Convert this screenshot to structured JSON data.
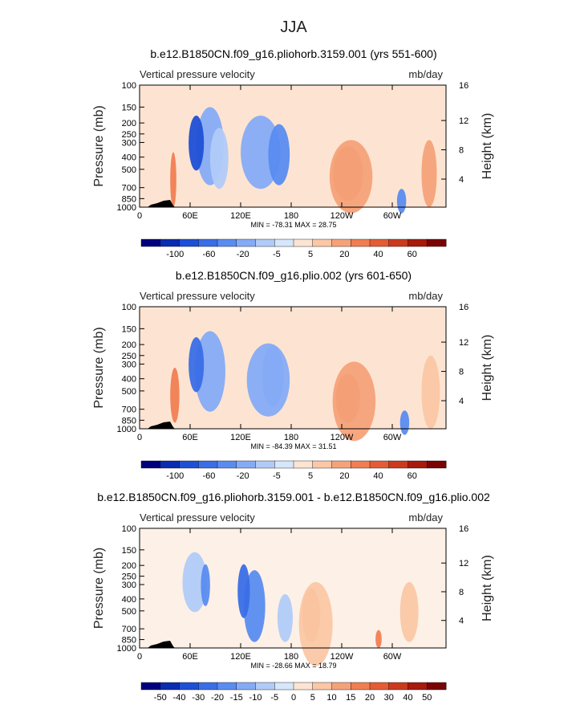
{
  "page": {
    "title": "JJA"
  },
  "chart_data": [
    {
      "type": "heatmap",
      "title": "b.e12.B1850CN.f09_g16.pliohorb.3159.001 (yrs 551-600)",
      "left_label": "Vertical pressure velocity",
      "right_label": "mb/day",
      "ylabel": "Pressure (mb)",
      "ylabel_right": "Height (km)",
      "yticks": [
        "100",
        "150",
        "200",
        "250",
        "300",
        "400",
        "500",
        "700",
        "850",
        "1000"
      ],
      "yticks_right": [
        "16",
        "12",
        "8",
        "4"
      ],
      "xticks": [
        "0",
        "60E",
        "120E",
        "180",
        "120W",
        "60W"
      ],
      "stats": "MIN = -78.31   MAX =  28.75",
      "colorbar_labels": [
        "-100",
        "-60",
        "-20",
        "-5",
        "5",
        "20",
        "40",
        "60"
      ],
      "colorbar_colors": [
        "#00007f",
        "#0a2cb0",
        "#1f4fd6",
        "#3a6ee6",
        "#5a8cf0",
        "#86abf5",
        "#b1cbf8",
        "#d6e6fb",
        "#fde4d2",
        "#fbc7a5",
        "#f6a279",
        "#f17e52",
        "#e55c34",
        "#cc3a1e",
        "#a71a0c",
        "#7a0403"
      ],
      "zero_color": "#fde4d2",
      "features": [
        {
          "x": 0.185,
          "w": 0.09,
          "y": 0.18,
          "h": 0.64,
          "v": -30
        },
        {
          "x": 0.16,
          "w": 0.05,
          "y": 0.25,
          "h": 0.45,
          "v": -60
        },
        {
          "x": 0.33,
          "w": 0.13,
          "y": 0.25,
          "h": 0.6,
          "v": -20
        },
        {
          "x": 0.42,
          "w": 0.07,
          "y": 0.32,
          "h": 0.5,
          "v": -35
        },
        {
          "x": 0.23,
          "w": 0.06,
          "y": 0.35,
          "h": 0.5,
          "v": -15
        },
        {
          "x": 0.63,
          "w": 0.1,
          "y": 0.5,
          "h": 0.45,
          "v": 30
        },
        {
          "x": 0.62,
          "w": 0.14,
          "y": 0.45,
          "h": 0.6,
          "v": 15
        },
        {
          "x": 0.84,
          "w": 0.03,
          "y": 0.85,
          "h": 0.2,
          "v": -40
        },
        {
          "x": 0.92,
          "w": 0.05,
          "y": 0.45,
          "h": 0.55,
          "v": 12
        },
        {
          "x": 0.1,
          "w": 0.02,
          "y": 0.55,
          "h": 0.45,
          "v": 25
        }
      ],
      "value_range": [
        -78.31,
        28.75
      ]
    },
    {
      "type": "heatmap",
      "title": "b.e12.B1850CN.f09_g16.plio.002 (yrs 601-650)",
      "left_label": "Vertical pressure velocity",
      "right_label": "mb/day",
      "ylabel": "Pressure (mb)",
      "ylabel_right": "Height (km)",
      "yticks": [
        "100",
        "150",
        "200",
        "250",
        "300",
        "400",
        "500",
        "700",
        "850",
        "1000"
      ],
      "yticks_right": [
        "16",
        "12",
        "8",
        "4"
      ],
      "xticks": [
        "0",
        "60E",
        "120E",
        "180",
        "120W",
        "60W"
      ],
      "stats": "MIN = -84.39   MAX =  31.51",
      "colorbar_labels": [
        "-100",
        "-60",
        "-20",
        "-5",
        "5",
        "20",
        "40",
        "60"
      ],
      "colorbar_colors": [
        "#00007f",
        "#0a2cb0",
        "#1f4fd6",
        "#3a6ee6",
        "#5a8cf0",
        "#86abf5",
        "#b1cbf8",
        "#d6e6fb",
        "#fde4d2",
        "#fbc7a5",
        "#f6a279",
        "#f17e52",
        "#e55c34",
        "#cc3a1e",
        "#a71a0c",
        "#7a0403"
      ],
      "zero_color": "#fde4d2",
      "features": [
        {
          "x": 0.18,
          "w": 0.1,
          "y": 0.2,
          "h": 0.66,
          "v": -30
        },
        {
          "x": 0.16,
          "w": 0.05,
          "y": 0.25,
          "h": 0.45,
          "v": -60
        },
        {
          "x": 0.35,
          "w": 0.14,
          "y": 0.3,
          "h": 0.6,
          "v": -22
        },
        {
          "x": 0.4,
          "w": 0.07,
          "y": 0.32,
          "h": 0.5,
          "v": -35
        },
        {
          "x": 0.64,
          "w": 0.08,
          "y": 0.55,
          "h": 0.4,
          "v": 30
        },
        {
          "x": 0.63,
          "w": 0.14,
          "y": 0.45,
          "h": 0.65,
          "v": 15
        },
        {
          "x": 0.85,
          "w": 0.03,
          "y": 0.85,
          "h": 0.2,
          "v": -40
        },
        {
          "x": 0.92,
          "w": 0.06,
          "y": 0.4,
          "h": 0.6,
          "v": 10
        },
        {
          "x": 0.1,
          "w": 0.03,
          "y": 0.5,
          "h": 0.45,
          "v": 20
        }
      ],
      "value_range": [
        -84.39,
        31.51
      ]
    },
    {
      "type": "heatmap",
      "title": "b.e12.B1850CN.f09_g16.pliohorb.3159.001 - b.e12.B1850CN.f09_g16.plio.002",
      "left_label": "Vertical pressure velocity",
      "right_label": "mb/day",
      "ylabel": "Pressure (mb)",
      "ylabel_right": "Height (km)",
      "yticks": [
        "100",
        "150",
        "200",
        "250",
        "300",
        "400",
        "500",
        "700",
        "850",
        "1000"
      ],
      "yticks_right": [
        "16",
        "12",
        "8",
        "4"
      ],
      "xticks": [
        "0",
        "60E",
        "120E",
        "180",
        "120W",
        "60W"
      ],
      "stats": "MIN = -28.66   MAX =  18.79",
      "colorbar_labels": [
        "-50",
        "-40",
        "-30",
        "-20",
        "-15",
        "-10",
        "-5",
        "0",
        "5",
        "10",
        "15",
        "20",
        "30",
        "40",
        "50"
      ],
      "colorbar_colors": [
        "#00007f",
        "#0a2cb0",
        "#1f4fd6",
        "#3a6ee6",
        "#5a8cf0",
        "#86abf5",
        "#b1cbf8",
        "#d6e6fb",
        "#fde4d2",
        "#fbc7a5",
        "#f6a279",
        "#f17e52",
        "#e55c34",
        "#cc3a1e",
        "#a71a0c",
        "#7a0403"
      ],
      "zero_color": "#fdf0e6",
      "features": [
        {
          "x": 0.14,
          "w": 0.08,
          "y": 0.2,
          "h": 0.5,
          "v": -4
        },
        {
          "x": 0.34,
          "w": 0.07,
          "y": 0.35,
          "h": 0.6,
          "v": -12
        },
        {
          "x": 0.32,
          "w": 0.04,
          "y": 0.3,
          "h": 0.45,
          "v": -18
        },
        {
          "x": 0.2,
          "w": 0.03,
          "y": 0.3,
          "h": 0.35,
          "v": -12
        },
        {
          "x": 0.53,
          "w": 0.06,
          "y": 0.5,
          "h": 0.45,
          "v": 14
        },
        {
          "x": 0.52,
          "w": 0.11,
          "y": 0.45,
          "h": 0.7,
          "v": 6
        },
        {
          "x": 0.85,
          "w": 0.06,
          "y": 0.45,
          "h": 0.5,
          "v": 5
        },
        {
          "x": 0.77,
          "w": 0.02,
          "y": 0.85,
          "h": 0.15,
          "v": 15
        },
        {
          "x": 0.45,
          "w": 0.05,
          "y": 0.55,
          "h": 0.4,
          "v": -5
        }
      ],
      "value_range": [
        -28.66,
        18.79
      ]
    }
  ]
}
